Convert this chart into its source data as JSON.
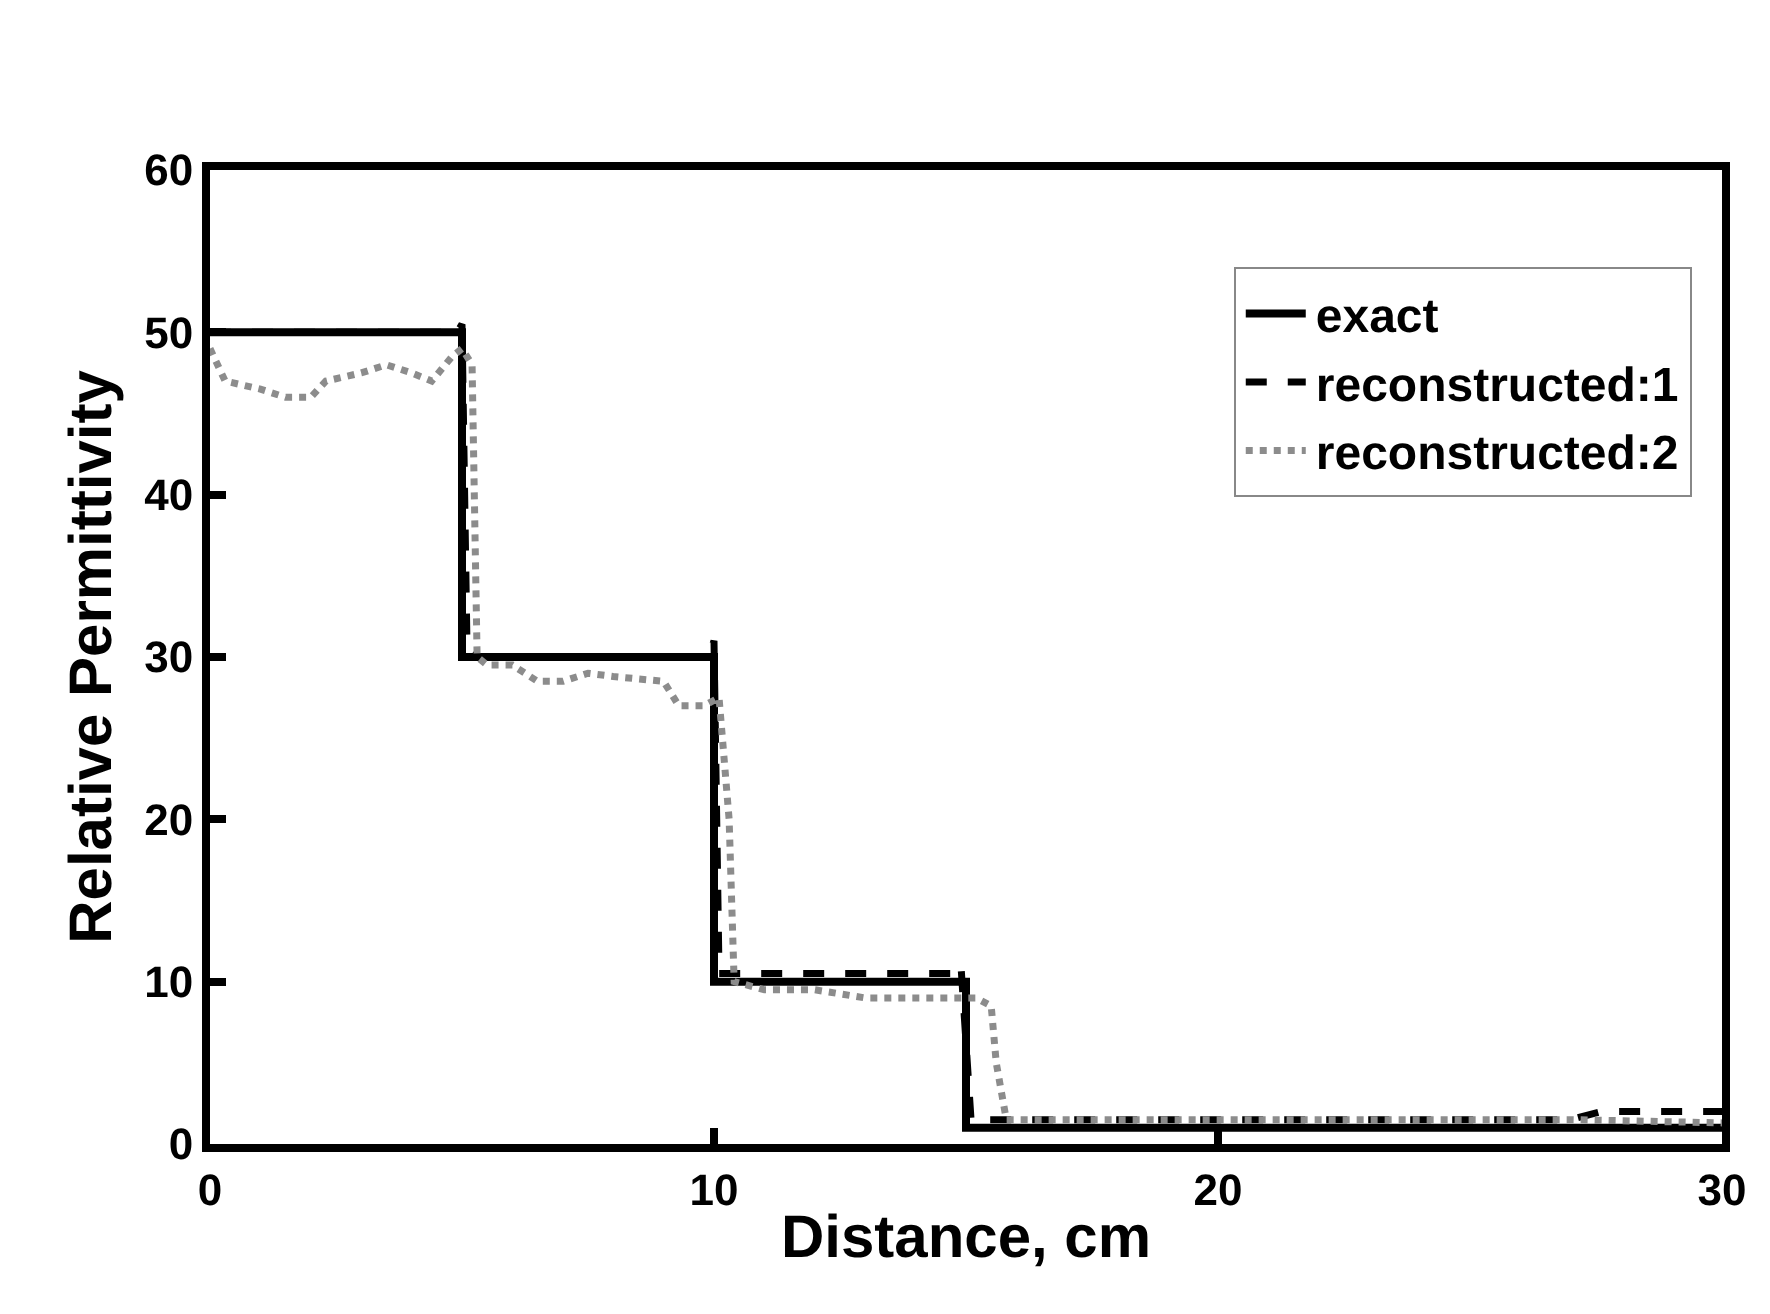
{
  "chart_data": {
    "type": "line",
    "xlabel": "Distance, cm",
    "ylabel": "Relative Permittivity",
    "xlim": [
      0,
      30
    ],
    "xticks": [
      0,
      10,
      20,
      30
    ],
    "ylim": [
      0,
      60
    ],
    "yticks": [
      0,
      10,
      20,
      30,
      40,
      50,
      60
    ],
    "legend": "top right",
    "marker": "none",
    "series": [
      {
        "name": "exact",
        "color": "#000000",
        "line_style": "solid",
        "x": [
          0,
          5,
          5,
          10,
          10,
          15,
          15,
          30
        ],
        "values": [
          50,
          50,
          30,
          30,
          10,
          10,
          1,
          1
        ]
      },
      {
        "name": "reconstructed:1",
        "color": "#000000",
        "line_style": "dashed",
        "x": [
          0,
          4.9,
          5.0,
          5.1,
          5.3,
          9.9,
          10.0,
          10.1,
          10.3,
          14.8,
          14.9,
          15.1,
          15.3,
          27,
          27.6,
          28,
          30
        ],
        "values": [
          50,
          50,
          50.5,
          30.5,
          30,
          30,
          31,
          10.5,
          10.5,
          10.5,
          11,
          1.5,
          1.5,
          1.5,
          2,
          2,
          2
        ]
      },
      {
        "name": "reconstructed:2",
        "color": "#8c8c8c",
        "line_style": "dotted",
        "x": [
          0,
          0.3,
          1,
          1.5,
          2,
          2.3,
          3,
          3.5,
          4,
          4.4,
          4.8,
          5.0,
          5.2,
          5.3,
          5.5,
          6,
          6.5,
          7,
          7.5,
          8,
          9,
          9.3,
          9.8,
          10.1,
          10.3,
          10.4,
          11,
          12,
          13,
          14,
          14.8,
          15.2,
          15.5,
          15.6,
          15.8,
          16,
          20,
          27,
          30
        ],
        "values": [
          49,
          47,
          46.5,
          46,
          46,
          47,
          47.5,
          48,
          47.5,
          47,
          48.5,
          49,
          48,
          30,
          29.5,
          29.5,
          28.5,
          28.5,
          29,
          28.8,
          28.5,
          27,
          27,
          27.5,
          20,
          10,
          9.5,
          9.5,
          9,
          9,
          9,
          9,
          8.5,
          5,
          1.5,
          1.5,
          1.5,
          1.5,
          1.3
        ]
      }
    ]
  }
}
